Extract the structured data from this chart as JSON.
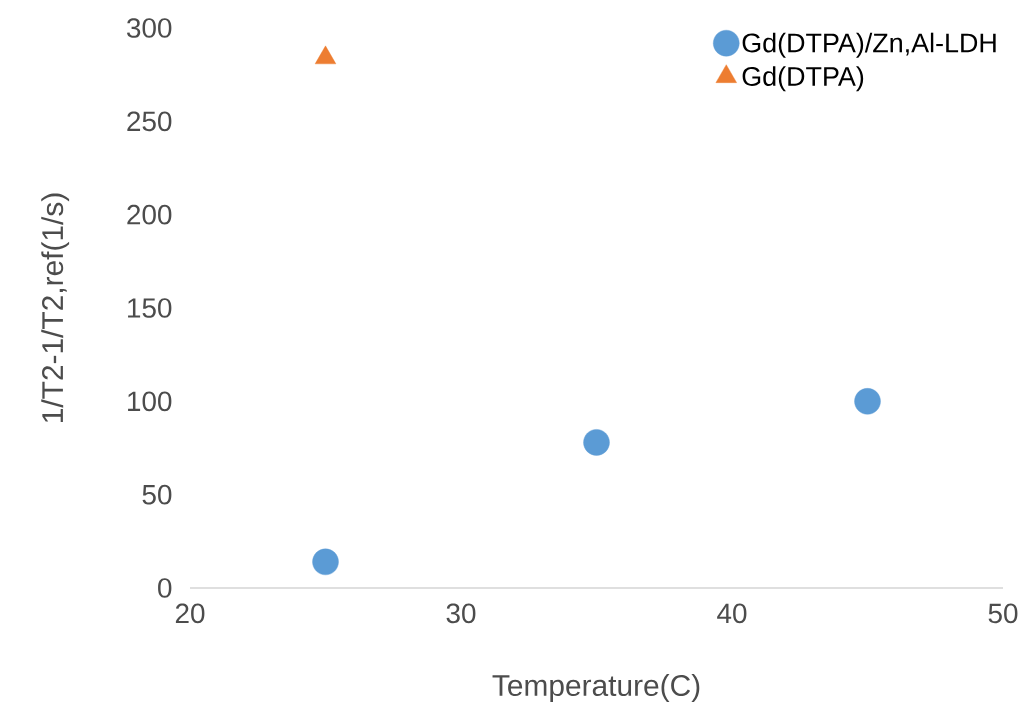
{
  "chart_data": {
    "type": "scatter",
    "xlabel": "Temperature(C)",
    "ylabel": "1/T2-1/T2,ref(1/s)",
    "xlim": [
      20,
      50
    ],
    "xticks": [
      20,
      30,
      40,
      50
    ],
    "ylim": [
      0,
      300
    ],
    "yticks": [
      0,
      50,
      100,
      150,
      200,
      250,
      300
    ],
    "grid": false,
    "legend": "top right",
    "series": [
      {
        "name": "Gd(DTPA)/Zn,Al-LDH",
        "color": "#5b9bd5",
        "marker": "circle",
        "x": [
          25,
          35,
          45
        ],
        "values": [
          14,
          78,
          100
        ]
      },
      {
        "name": "Gd(DTPA)",
        "color": "#ed7d31",
        "marker": "triangle",
        "x": [
          25
        ],
        "values": [
          284
        ]
      }
    ]
  }
}
